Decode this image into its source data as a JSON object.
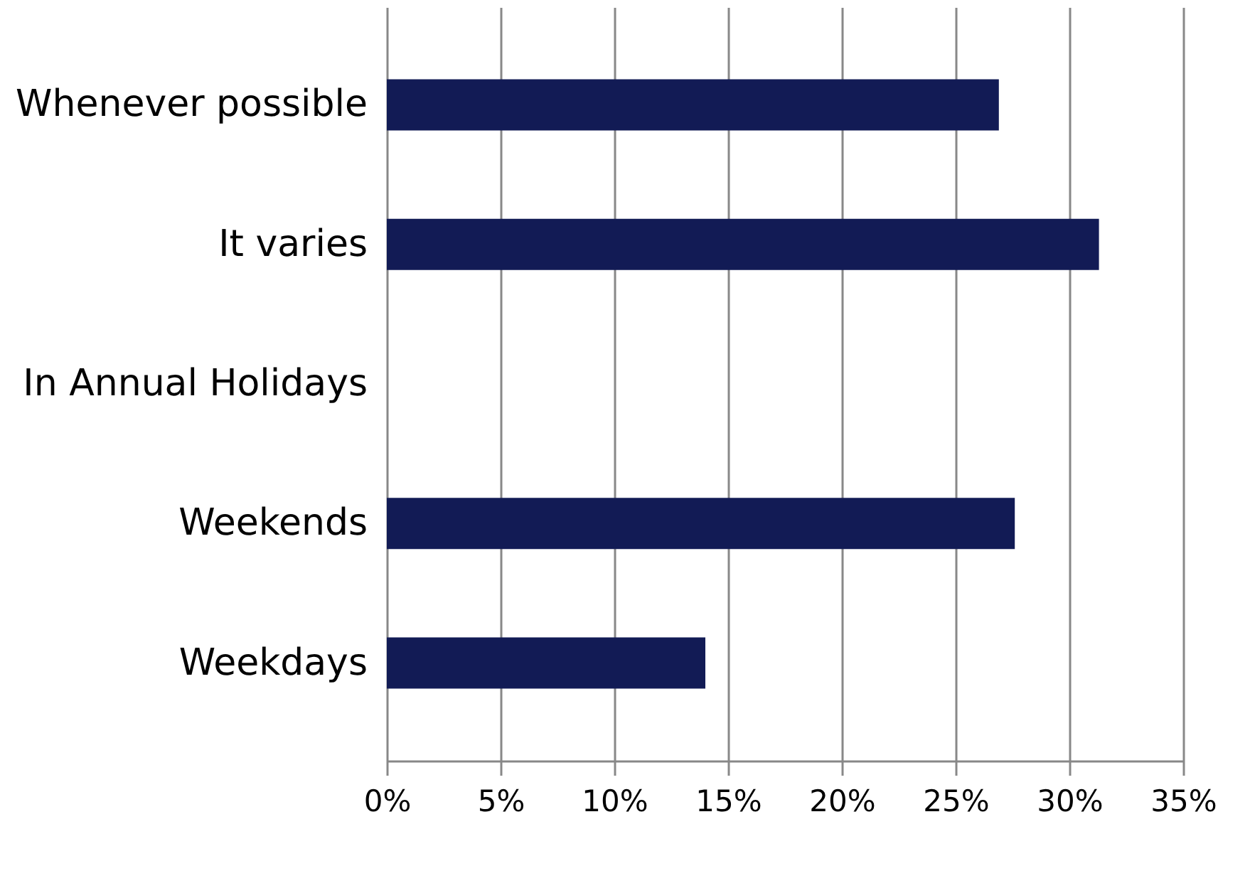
{
  "chart_data": {
    "type": "bar",
    "orientation": "horizontal",
    "categories": [
      "Whenever possible",
      "It varies",
      "In Annual Holidays",
      "Weekends",
      "Weekdays"
    ],
    "values": [
      26.9,
      31.3,
      0,
      27.6,
      14.0
    ],
    "color": "#121b55",
    "xlim": [
      0,
      35
    ],
    "xticks": [
      {
        "value": 0,
        "label": "0%"
      },
      {
        "value": 5,
        "label": "5%"
      },
      {
        "value": 10,
        "label": "10%"
      },
      {
        "value": 15,
        "label": "15%"
      },
      {
        "value": 20,
        "label": "20%"
      },
      {
        "value": 25,
        "label": "25%"
      },
      {
        "value": 30,
        "label": "30%"
      },
      {
        "value": 35,
        "label": "35%"
      }
    ],
    "grid": "x"
  }
}
